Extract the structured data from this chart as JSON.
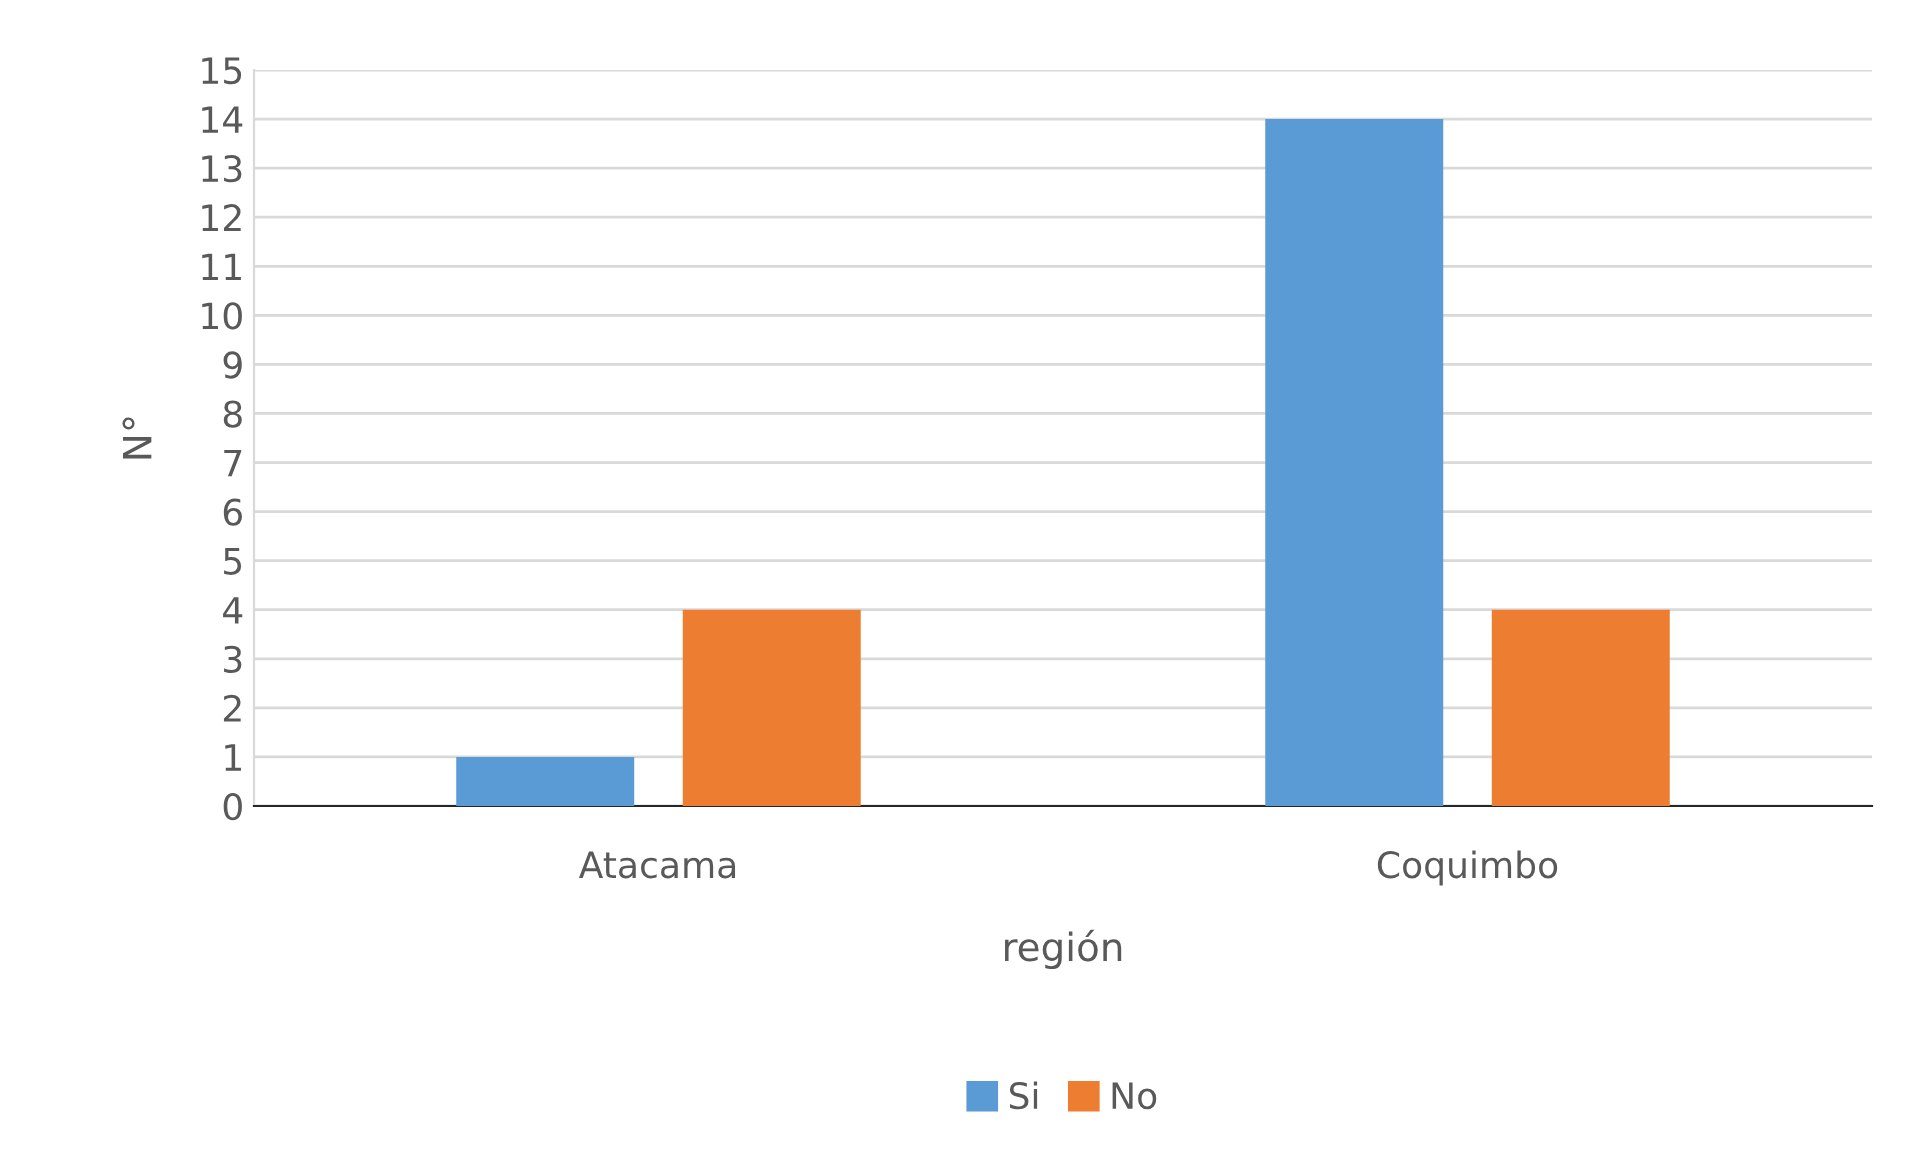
{
  "chart_data": {
    "type": "bar",
    "xlabel": "región",
    "ylabel": "N°",
    "categories": [
      "Atacama",
      "Coquimbo"
    ],
    "series": [
      {
        "name": "Si",
        "color": "#5b9bd5",
        "values": [
          1,
          14
        ]
      },
      {
        "name": "No",
        "color": "#ed7d31",
        "values": [
          4,
          4
        ]
      }
    ],
    "ylim": [
      0,
      15
    ],
    "yticks": [
      0,
      1,
      2,
      3,
      4,
      5,
      6,
      7,
      8,
      9,
      10,
      11,
      12,
      13,
      14,
      15
    ],
    "grid": "y",
    "legend": "bottom"
  }
}
